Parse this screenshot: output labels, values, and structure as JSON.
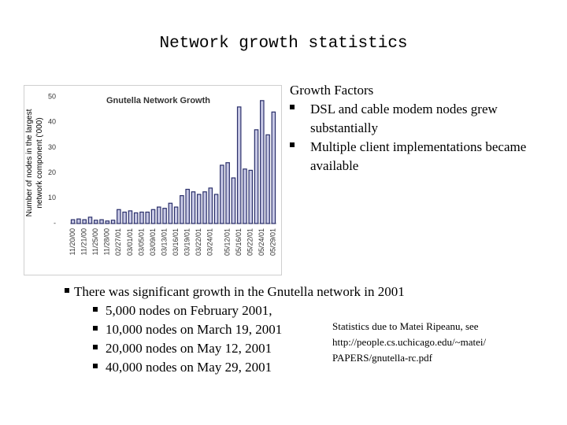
{
  "slide": {
    "title": "Network growth statistics",
    "side_heading": "Growth Factors",
    "side_bullets": [
      "DSL and cable modem nodes grew substantially",
      "Multiple client implementations became available"
    ],
    "main_bullet": "There was significant growth in the Gnutella network in 2001",
    "sub_bullets": [
      "5,000 nodes on February 2001,",
      "10,000 nodes on March 19, 2001",
      "20,000 nodes on May 12, 2001",
      "40,000 nodes on May 29, 2001"
    ],
    "note": [
      "Statistics due to Matei Ripeanu, see",
      "http://people.cs.uchicago.edu/~matei/",
      "PAPERS/gnutella-rc.pdf"
    ]
  },
  "chart_data": {
    "type": "bar",
    "title": "Gnutella Network Growth",
    "y_label": "Number of nodes in the largest network component ('000)",
    "categories": [
      "11/20/00",
      null,
      "11/21/00",
      null,
      "11/25/00",
      null,
      "11/28/00",
      null,
      "02/27/01",
      null,
      "03/01/01",
      null,
      "03/05/01",
      null,
      "03/09/01",
      null,
      "03/13/01",
      null,
      "03/16/01",
      null,
      "03/19/01",
      null,
      "03/22/01",
      null,
      "03/24/01",
      null,
      null,
      "05/12/01",
      null,
      "05/16/01",
      null,
      "05/22/01",
      null,
      "05/24/01",
      null,
      "05/29/01"
    ],
    "values": [
      1.5,
      1.8,
      1.5,
      2.5,
      1.3,
      1.5,
      1.0,
      1.3,
      5.5,
      4.5,
      5,
      4.2,
      4.5,
      4.5,
      5.5,
      6.5,
      6,
      8,
      6.5,
      11,
      13.5,
      12.5,
      11.5,
      12.5,
      14,
      11.5,
      23,
      24,
      18,
      46,
      21.5,
      21,
      37,
      48.5,
      35,
      44
    ],
    "color": "#c9cae6",
    "edge_color": "#2a2f6a",
    "ylim": [
      0,
      50
    ],
    "yticks": [
      {
        "value": 0,
        "label": "-"
      },
      10,
      20,
      30,
      40,
      50
    ]
  }
}
